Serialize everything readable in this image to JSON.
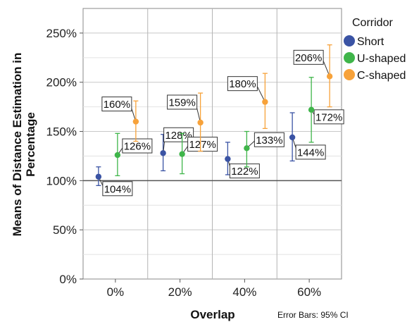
{
  "chart_data": {
    "type": "scatter",
    "xlabel": "Overlap",
    "ylabel_lines": [
      "Means of Distance Estimation in",
      "Percentage"
    ],
    "categories": [
      "0%",
      "20%",
      "40%",
      "60%"
    ],
    "y_ticks": [
      "0%",
      "50%",
      "100%",
      "150%",
      "200%",
      "250%"
    ],
    "y_tick_values": [
      0,
      50,
      100,
      150,
      200,
      250
    ],
    "ylim": [
      0,
      275
    ],
    "grid": true,
    "reference_line": 100,
    "legend": {
      "title": "Corridor",
      "placement": "right"
    },
    "footnote": "Error Bars: 95% CI",
    "series": [
      {
        "name": "Short",
        "color": "#3a53a4",
        "values": [
          104,
          128,
          122,
          144
        ],
        "ci_low": [
          95,
          110,
          106,
          120
        ],
        "ci_high": [
          114,
          147,
          139,
          169
        ],
        "labels": [
          "104%",
          "128%",
          "122%",
          "144%"
        ]
      },
      {
        "name": "U-shaped",
        "color": "#3fb54a",
        "values": [
          126,
          127,
          133,
          172
        ],
        "ci_low": [
          105,
          107,
          114,
          139
        ],
        "ci_high": [
          148,
          148,
          150,
          205
        ],
        "labels": [
          "126%",
          "127%",
          "133%",
          "172%"
        ]
      },
      {
        "name": "C-shaped",
        "color": "#f7a23a",
        "values": [
          160,
          159,
          180,
          206
        ],
        "ci_low": [
          140,
          130,
          153,
          175
        ],
        "ci_high": [
          181,
          189,
          209,
          238
        ],
        "labels": [
          "160%",
          "159%",
          "180%",
          "206%"
        ]
      }
    ]
  }
}
